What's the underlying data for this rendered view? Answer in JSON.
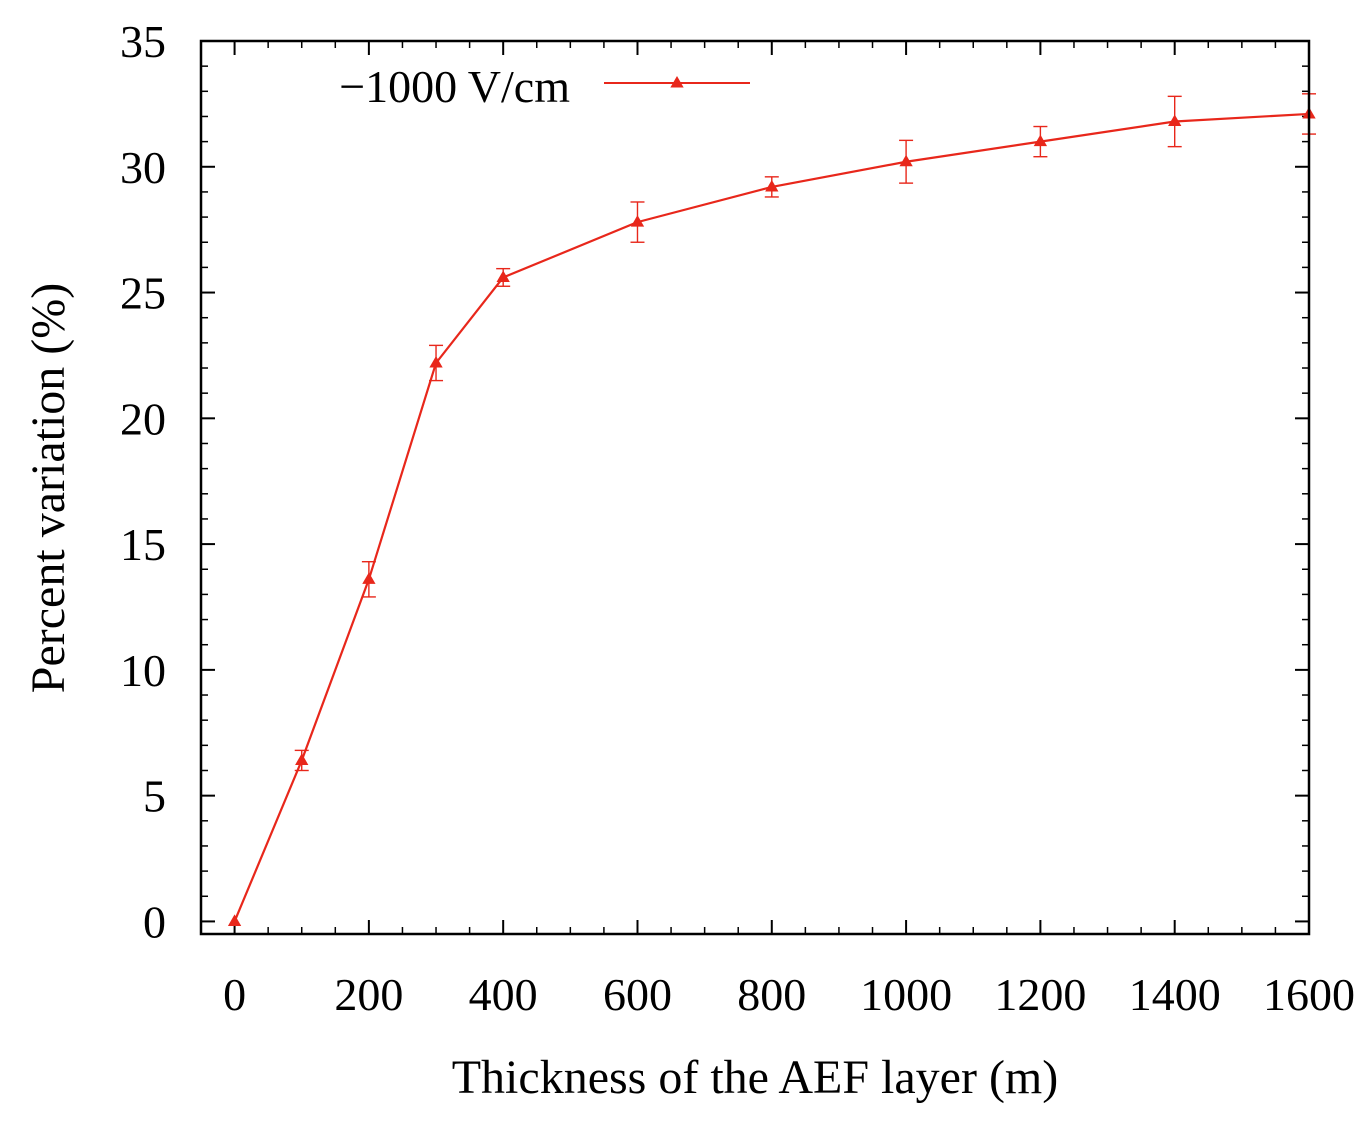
{
  "chart_data": {
    "type": "line",
    "title": "",
    "xlabel": "Thickness of the AEF layer (m)",
    "ylabel": "Percent variation (%)",
    "xlim": [
      -50,
      1600
    ],
    "ylim": [
      -0.5,
      35
    ],
    "x_ticks": [
      0,
      200,
      400,
      600,
      800,
      1000,
      1200,
      1400,
      1600
    ],
    "x_tick_labels": [
      "0",
      "200",
      "400",
      "600",
      "800",
      "1000",
      "1200",
      "1400",
      "1600"
    ],
    "y_ticks": [
      0,
      5,
      10,
      15,
      20,
      25,
      30,
      35
    ],
    "y_tick_labels": [
      "0",
      "5",
      "10",
      "15",
      "20",
      "25",
      "30",
      "35"
    ],
    "x_minor_step": 50,
    "y_minor_step": 1,
    "grid": false,
    "legend_position": "top-left",
    "series": [
      {
        "name": "−1000 V/cm",
        "color": "#e8271b",
        "marker": "triangle",
        "x": [
          0,
          100,
          200,
          300,
          400,
          600,
          800,
          1000,
          1200,
          1400,
          1600
        ],
        "y": [
          0,
          6.4,
          13.6,
          22.2,
          25.6,
          27.8,
          29.2,
          30.2,
          31.0,
          31.8,
          32.1
        ],
        "err": [
          0,
          0.4,
          0.7,
          0.7,
          0.35,
          0.8,
          0.4,
          0.85,
          0.6,
          1.0,
          0.8
        ]
      }
    ]
  }
}
